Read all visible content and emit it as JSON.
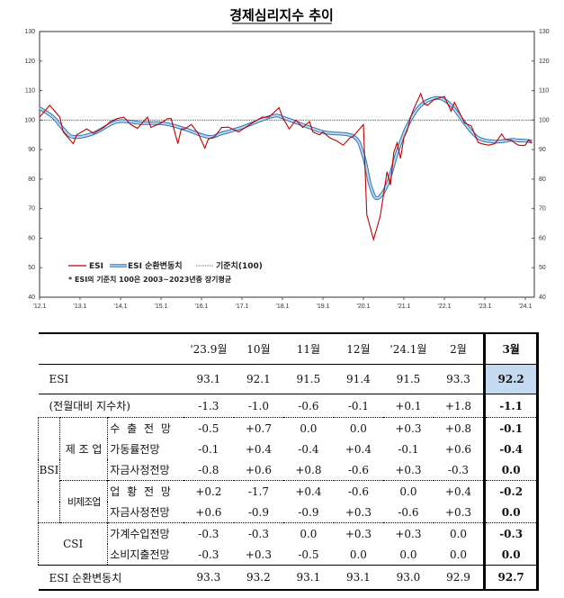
{
  "chart_data": {
    "type": "line",
    "title": "경제심리지수 추이",
    "ylim": [
      40,
      130
    ],
    "yticks": [
      40,
      50,
      60,
      70,
      80,
      90,
      100,
      110,
      120,
      130
    ],
    "xticks": [
      "'12.1",
      "'13.1",
      "'14.1",
      "'15.1",
      "'16.1",
      "'17.1",
      "'18.1",
      "'19.1",
      "'20.1",
      "'21.1",
      "'22.1",
      "'23.1",
      "'24.1"
    ],
    "reference_line": {
      "name": "기준치(100)",
      "value": 100,
      "color": "#555555"
    },
    "note": "* ESI의 기준치 100은 2003~2023년중 장기평균",
    "legend_position": "bottom-left",
    "series": [
      {
        "name": "ESI",
        "color": "#c00000",
        "points": [
          [
            "2012-01",
            101
          ],
          [
            "2012-04",
            105
          ],
          [
            "2012-07",
            101
          ],
          [
            "2012-08",
            96
          ],
          [
            "2012-11",
            92
          ],
          [
            "2012-12",
            95
          ],
          [
            "2013-03",
            97
          ],
          [
            "2013-05",
            95.5
          ],
          [
            "2013-08",
            97.5
          ],
          [
            "2013-10",
            99.5
          ],
          [
            "2013-12",
            100.5
          ],
          [
            "2014-02",
            101
          ],
          [
            "2014-04",
            98.5
          ],
          [
            "2014-06",
            97.2
          ],
          [
            "2014-09",
            101
          ],
          [
            "2014-10",
            97.5
          ],
          [
            "2015-01",
            99
          ],
          [
            "2015-03",
            100.5
          ],
          [
            "2015-04",
            100.5
          ],
          [
            "2015-06",
            92
          ],
          [
            "2015-07",
            97
          ],
          [
            "2015-08",
            97
          ],
          [
            "2015-10",
            98.5
          ],
          [
            "2015-12",
            95.5
          ],
          [
            "2016-02",
            90.5
          ],
          [
            "2016-03",
            93.5
          ],
          [
            "2016-05",
            94.5
          ],
          [
            "2016-07",
            97.5
          ],
          [
            "2016-09",
            97.6
          ],
          [
            "2016-12",
            96
          ],
          [
            "2017-02",
            97.5
          ],
          [
            "2017-04",
            99
          ],
          [
            "2017-07",
            101
          ],
          [
            "2017-09",
            101
          ],
          [
            "2017-12",
            104.2
          ],
          [
            "2018-01",
            101
          ],
          [
            "2018-03",
            97
          ],
          [
            "2018-05",
            100
          ],
          [
            "2018-07",
            97.5
          ],
          [
            "2018-09",
            99.5
          ],
          [
            "2018-10",
            96
          ],
          [
            "2018-12",
            95
          ],
          [
            "2019-01",
            96
          ],
          [
            "2019-03",
            94
          ],
          [
            "2019-05",
            93
          ],
          [
            "2019-07",
            91.5
          ],
          [
            "2019-09",
            94
          ],
          [
            "2019-10",
            94.5
          ],
          [
            "2020-01",
            98.5
          ],
          [
            "2020-02",
            68
          ],
          [
            "2020-04",
            59.5
          ],
          [
            "2020-06",
            67.5
          ],
          [
            "2020-08",
            82.5
          ],
          [
            "2020-09",
            78
          ],
          [
            "2020-10",
            89
          ],
          [
            "2020-11",
            92.3
          ],
          [
            "2020-12",
            87
          ],
          [
            "2021-01",
            94
          ],
          [
            "2021-02",
            96.5
          ],
          [
            "2021-03",
            101
          ],
          [
            "2021-04",
            104
          ],
          [
            "2021-06",
            109
          ],
          [
            "2021-07",
            105.5
          ],
          [
            "2021-08",
            105
          ],
          [
            "2021-10",
            107
          ],
          [
            "2022-01",
            108
          ],
          [
            "2022-03",
            103
          ],
          [
            "2022-04",
            106
          ],
          [
            "2022-07",
            99
          ],
          [
            "2022-09",
            98
          ],
          [
            "2022-11",
            92.5
          ],
          [
            "2022-12",
            92
          ],
          [
            "2023-02",
            91.5
          ],
          [
            "2023-04",
            92
          ],
          [
            "2023-06",
            95.3
          ],
          [
            "2023-07",
            93.5
          ],
          [
            "2023-09",
            93.1
          ],
          [
            "2023-10",
            92.1
          ],
          [
            "2023-11",
            91.5
          ],
          [
            "2023-12",
            91.4
          ],
          [
            "2024-01",
            91.5
          ],
          [
            "2024-02",
            93.3
          ],
          [
            "2024-03",
            92.2
          ]
        ]
      },
      {
        "name": "ESI 순환변동치",
        "color": "#5b9bd5",
        "points": [
          [
            "2012-01",
            104
          ],
          [
            "2012-05",
            101
          ],
          [
            "2012-08",
            97
          ],
          [
            "2012-11",
            94.3
          ],
          [
            "2013-05",
            95.5
          ],
          [
            "2013-12",
            99.5
          ],
          [
            "2014-07",
            99
          ],
          [
            "2015-02",
            98.8
          ],
          [
            "2015-08",
            97
          ],
          [
            "2016-03",
            94.3
          ],
          [
            "2016-07",
            95.5
          ],
          [
            "2017-01",
            97.5
          ],
          [
            "2017-10",
            101.3
          ],
          [
            "2018-02",
            100.5
          ],
          [
            "2019-01",
            96
          ],
          [
            "2019-10",
            94.5
          ],
          [
            "2020-01",
            88
          ],
          [
            "2020-03",
            78
          ],
          [
            "2020-05",
            73.5
          ],
          [
            "2020-08",
            78
          ],
          [
            "2020-11",
            89
          ],
          [
            "2021-02",
            98
          ],
          [
            "2021-06",
            105
          ],
          [
            "2021-11",
            107.5
          ],
          [
            "2022-03",
            105
          ],
          [
            "2022-07",
            99
          ],
          [
            "2022-11",
            94
          ],
          [
            "2023-04",
            92.7
          ],
          [
            "2023-09",
            93.3
          ],
          [
            "2023-10",
            93.2
          ],
          [
            "2023-11",
            93.1
          ],
          [
            "2023-12",
            93.1
          ],
          [
            "2024-01",
            93.0
          ],
          [
            "2024-02",
            92.9
          ],
          [
            "2024-03",
            92.7
          ]
        ]
      }
    ]
  },
  "table": {
    "headers": [
      "'23.9월",
      "10월",
      "11월",
      "12월",
      "'24.1월",
      "2월",
      "3월"
    ],
    "esi": {
      "label": "ESI",
      "values": [
        "93.1",
        "92.1",
        "91.5",
        "91.4",
        "91.5",
        "93.3",
        "92.2"
      ]
    },
    "change": {
      "label": "(전월대비 지수차)",
      "values": [
        "-1.3",
        "-1.0",
        "-0.6",
        "-0.1",
        "+0.1",
        "+1.8",
        "-1.1"
      ]
    },
    "bsi_label": "BSI",
    "mfg_label": "제 조 업",
    "nonmfg_label": "비제조업",
    "csi_label": "CSI",
    "rows": [
      {
        "label": "수 출 전 망",
        "values": [
          "-0.5",
          "+0.7",
          "0.0",
          "0.0",
          "+0.3",
          "+0.8",
          "-0.1"
        ]
      },
      {
        "label": "가동률전망",
        "values": [
          "-0.1",
          "+0.4",
          "-0.4",
          "+0.4",
          "-0.1",
          "+0.6",
          "-0.4"
        ]
      },
      {
        "label": "자금사정전망",
        "values": [
          "-0.8",
          "+0.6",
          "+0.8",
          "-0.6",
          "+0.3",
          "-0.3",
          "0.0"
        ]
      },
      {
        "label": "업 황 전 망",
        "values": [
          "+0.2",
          "-1.7",
          "+0.4",
          "-0.6",
          "0.0",
          "+0.4",
          "-0.2"
        ]
      },
      {
        "label": "자금사정전망",
        "values": [
          "+0.6",
          "-0.9",
          "-0.9",
          "+0.3",
          "-0.6",
          "+0.3",
          "0.0"
        ]
      },
      {
        "label": "가계수입전망",
        "values": [
          "-0.3",
          "-0.3",
          "0.0",
          "+0.3",
          "+0.3",
          "0.0",
          "-0.3"
        ]
      },
      {
        "label": "소비지출전망",
        "values": [
          "-0.3",
          "+0.3",
          "-0.5",
          "0.0",
          "0.0",
          "0.0",
          "0.0"
        ]
      }
    ],
    "cycle": {
      "label": "ESI 순환변동치",
      "values": [
        "93.3",
        "93.2",
        "93.1",
        "93.1",
        "93.0",
        "92.9",
        "92.7"
      ]
    },
    "highlight_color": "#c5d9f1"
  }
}
